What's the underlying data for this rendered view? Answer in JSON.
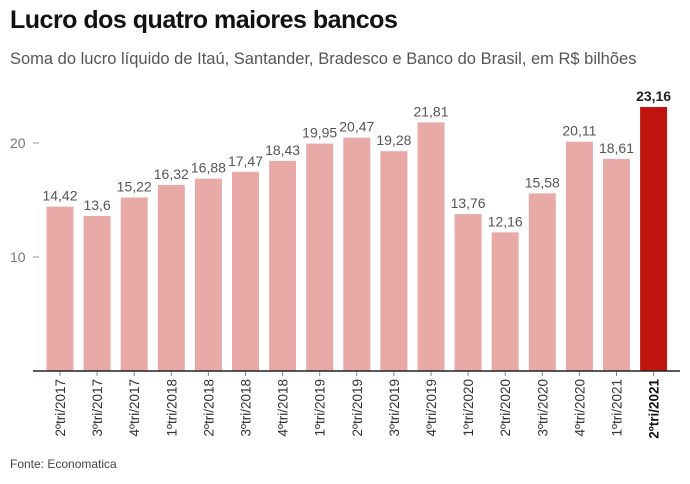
{
  "title": "Lucro dos quatro maiores bancos",
  "subtitle": "Soma do lucro líquido de Itaú, Santander, Bradesco e Banco do Brasil, em R$ bilhões",
  "source": "Fonte: Economatica",
  "colors": {
    "bar": "#e8aaa7",
    "highlight": "#c0150f",
    "text": "#555555",
    "axis": "#222222"
  },
  "chart_data": {
    "type": "bar",
    "title": "Lucro dos quatro maiores bancos",
    "ylabel": "",
    "xlabel": "",
    "ylim": [
      0,
      25
    ],
    "yticks": [
      10,
      20
    ],
    "grid": false,
    "categories": [
      "2ºtri/2017",
      "3ºtri/2017",
      "4ºtri/2017",
      "1ºtri/2018",
      "2ºtri/2018",
      "3ºtri/2018",
      "4ºtri/2018",
      "1ºtri/2019",
      "2ºtri/2019",
      "3ºtri/2019",
      "4ºtri/2019",
      "1ºtri/2020",
      "2ºtri/2020",
      "3ºtri/2020",
      "4ºtri/2020",
      "1ºtri/2021",
      "2ºtri/2021"
    ],
    "values": [
      14.42,
      13.6,
      15.22,
      16.32,
      16.88,
      17.47,
      18.43,
      19.95,
      20.47,
      19.28,
      21.81,
      13.76,
      12.16,
      15.58,
      20.11,
      18.61,
      23.16
    ],
    "value_labels": [
      "14,42",
      "13,6",
      "15,22",
      "16,32",
      "16,88",
      "17,47",
      "18,43",
      "19,95",
      "20,47",
      "19,28",
      "21,81",
      "13,76",
      "12,16",
      "15,58",
      "20,11",
      "18,61",
      "23,16"
    ],
    "highlight_index": 16
  }
}
